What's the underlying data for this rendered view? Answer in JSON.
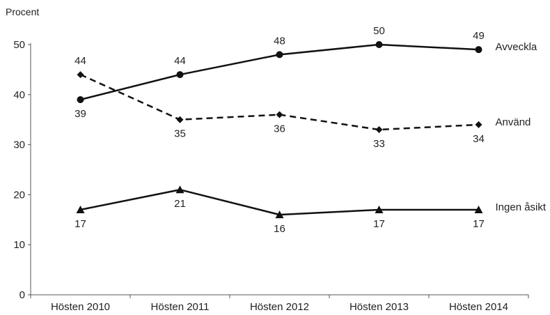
{
  "chart_data": {
    "type": "line",
    "ylabel": "Procent",
    "xlabel": "",
    "ylim": [
      0,
      50
    ],
    "yticks": [
      0,
      10,
      20,
      30,
      40,
      50
    ],
    "grid": false,
    "legend": "none; series names shown at right end of each line",
    "categories": [
      "Hösten 2010",
      "Hösten 2011",
      "Hösten 2012",
      "Hösten 2013",
      "Hösten 2014"
    ],
    "series": [
      {
        "name": "Avveckla",
        "values": [
          39,
          44,
          48,
          50,
          49
        ],
        "line_style": "solid",
        "marker": "circle",
        "label_side": [
          "below",
          "above",
          "above",
          "above",
          "above"
        ]
      },
      {
        "name": "Använd",
        "values": [
          44,
          35,
          36,
          33,
          34
        ],
        "line_style": "dashed",
        "marker": "diamond",
        "label_side": [
          "above",
          "below",
          "below",
          "below",
          "below"
        ]
      },
      {
        "name": "Ingen åsikt",
        "values": [
          17,
          21,
          16,
          17,
          17
        ],
        "line_style": "solid",
        "marker": "triangle",
        "label_side": [
          "below",
          "below",
          "below",
          "below",
          "below"
        ]
      }
    ],
    "colors": {
      "line": "#111111",
      "axis": "#555555",
      "text": "#222222"
    }
  }
}
